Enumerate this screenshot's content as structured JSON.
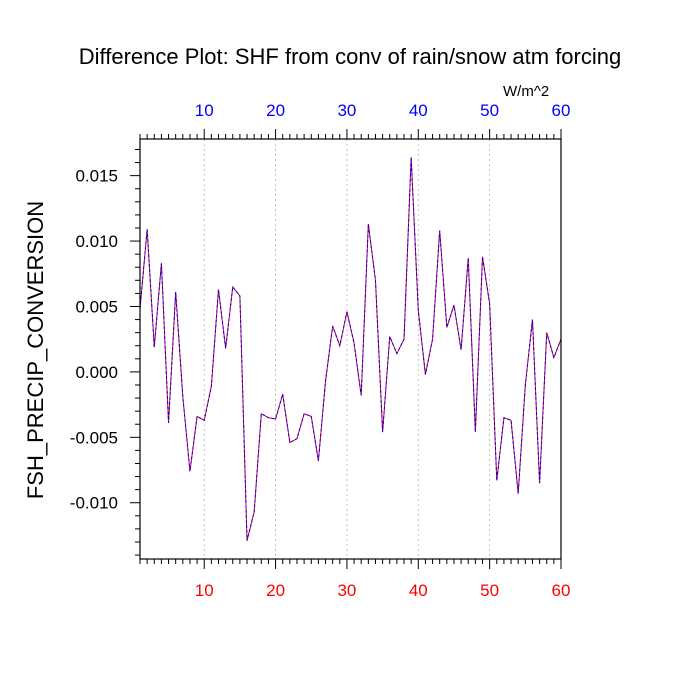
{
  "chart_data": {
    "type": "line",
    "title": "Difference Plot: SHF from conv of rain/snow atm forcing",
    "units_label": "W/m^2",
    "ylabel": "FSH_PRECIP_CONVERSION",
    "xlabel": "",
    "xlim": [
      1,
      60
    ],
    "ylim": [
      -0.0143,
      0.0178
    ],
    "x_ticks": [
      10,
      20,
      30,
      40,
      50,
      60
    ],
    "x_tick_labels": [
      "10",
      "20",
      "30",
      "40",
      "50",
      "60"
    ],
    "y_ticks": [
      -0.01,
      -0.005,
      0.0,
      0.005,
      0.01,
      0.015
    ],
    "y_tick_labels": [
      "-0.010",
      "-0.005",
      "0.000",
      "0.005",
      "0.010",
      "0.015"
    ],
    "grid_x": true,
    "grid_y": false,
    "bottom_tick_color": "#ff0000",
    "top_tick_color": "#0000ff",
    "line_colors": [
      "#ff0000",
      "#0000ff"
    ],
    "series": [
      {
        "x": [
          1,
          2,
          3,
          4,
          5,
          6,
          7,
          8,
          9,
          10,
          11,
          12,
          13,
          14,
          15,
          16,
          17,
          18,
          19,
          20,
          21,
          22,
          23,
          24,
          25,
          26,
          27,
          28,
          29,
          30,
          31,
          32,
          33,
          34,
          35,
          36,
          37,
          38,
          39,
          40,
          41,
          42,
          43,
          44,
          45,
          46,
          47,
          48,
          49,
          50,
          51,
          52,
          53,
          54,
          55,
          56,
          57,
          58,
          59,
          60
        ],
        "values": [
          0.0048,
          0.0109,
          0.0019,
          0.0083,
          -0.0039,
          0.0061,
          -0.0019,
          -0.0076,
          -0.0034,
          -0.0037,
          -0.0011,
          0.0063,
          0.0018,
          0.0065,
          0.0058,
          -0.0129,
          -0.0107,
          -0.0032,
          -0.0035,
          -0.0036,
          -0.0017,
          -0.0054,
          -0.0051,
          -0.0032,
          -0.0034,
          -0.0068,
          -0.0007,
          0.0035,
          0.002,
          0.0046,
          0.0022,
          -0.0018,
          0.0113,
          0.007,
          -0.0046,
          0.0027,
          0.0014,
          0.0025,
          0.0164,
          0.0047,
          -0.0002,
          0.0025,
          0.0108,
          0.0034,
          0.0051,
          0.0017,
          0.0087,
          -0.0046,
          0.0088,
          0.0052,
          -0.0083,
          -0.0035,
          -0.0037,
          -0.0093,
          -0.001,
          0.004,
          -0.0085,
          0.003,
          0.0011,
          0.0025
        ]
      }
    ]
  }
}
